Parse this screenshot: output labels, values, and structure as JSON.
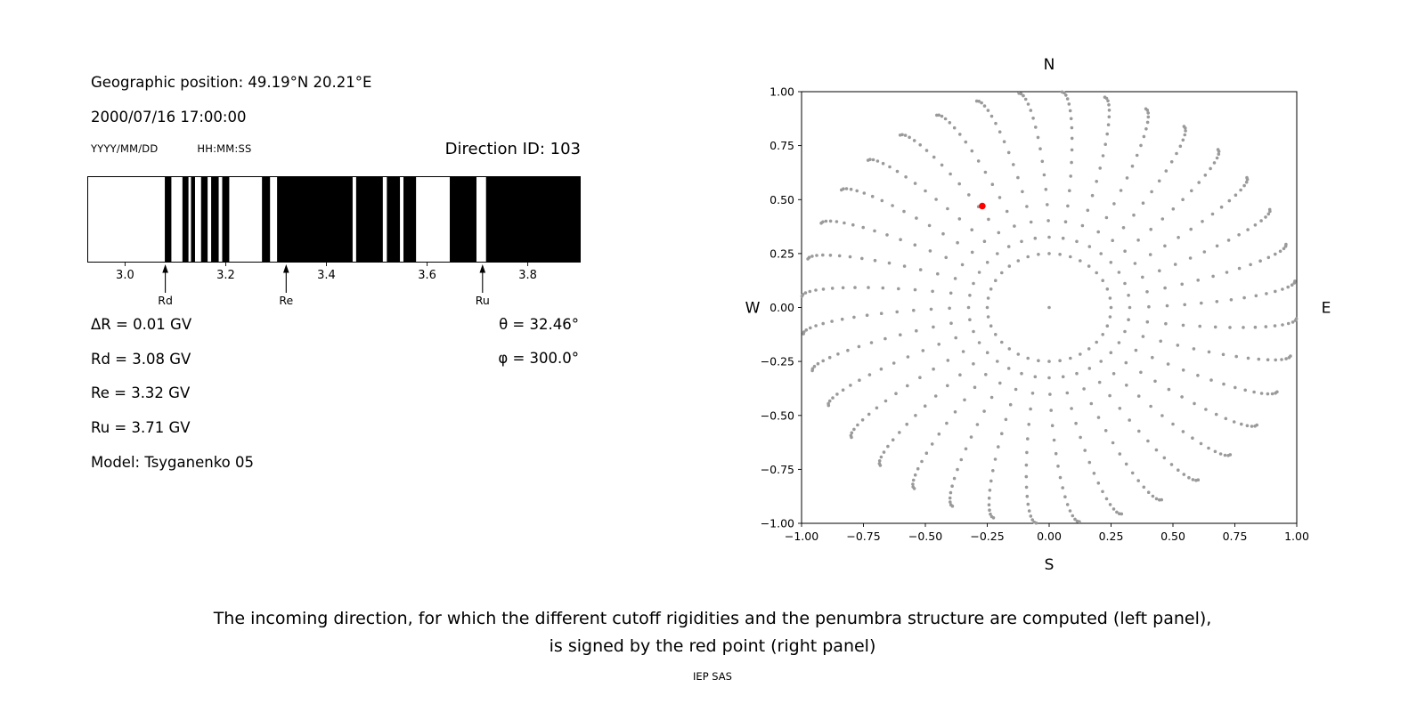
{
  "left_panel": {
    "geo_position": "Geographic position: 49.19°N 20.21°E",
    "datetime": "2000/07/16 17:00:00",
    "date_format_label": "YYYY/MM/DD",
    "time_format_label": "HH:MM:SS",
    "direction_id_label": "Direction ID: 103",
    "delta_r": "ΔR = 0.01 GV",
    "rd": "Rd = 3.08 GV",
    "re": "Re = 3.32 GV",
    "ru": "Ru = 3.71 GV",
    "model": "Model: Tsyganenko 05",
    "theta": "θ = 32.46°",
    "phi": "φ = 300.0°"
  },
  "caption": {
    "line1": "The incoming direction, for which the different cutoff rigidities and the penumbra structure are computed (left panel),",
    "line2": "is signed by the red point (right panel)",
    "credit": "IEP SAS"
  },
  "chart_data": [
    {
      "type": "bar",
      "name": "penumbra-structure",
      "xlim": [
        2.925,
        3.905
      ],
      "xticks": [
        3.0,
        3.2,
        3.4,
        3.6,
        3.8
      ],
      "xtick_labels": [
        "3.0",
        "3.2",
        "3.4",
        "3.6",
        "3.8"
      ],
      "bar_color": "#000000",
      "allowed_windows": [
        [
          3.079,
          3.092
        ],
        [
          3.114,
          3.126
        ],
        [
          3.131,
          3.139
        ],
        [
          3.151,
          3.164
        ],
        [
          3.171,
          3.186
        ],
        [
          3.193,
          3.207
        ],
        [
          3.272,
          3.288
        ],
        [
          3.302,
          3.452
        ],
        [
          3.459,
          3.512
        ],
        [
          3.52,
          3.546
        ],
        [
          3.553,
          3.578
        ],
        [
          3.645,
          3.698
        ],
        [
          3.717,
          3.905
        ]
      ],
      "markers": [
        {
          "label": "Rd",
          "x": 3.08
        },
        {
          "label": "Re",
          "x": 3.32
        },
        {
          "label": "Ru",
          "x": 3.71
        }
      ]
    },
    {
      "type": "scatter",
      "name": "incoming-direction-map",
      "xlim": [
        -1,
        1
      ],
      "ylim": [
        -1,
        1
      ],
      "xticks": [
        -1.0,
        -0.75,
        -0.5,
        -0.25,
        0.0,
        0.25,
        0.5,
        0.75,
        1.0
      ],
      "xtick_labels": [
        "−1.00",
        "−0.75",
        "−0.50",
        "−0.25",
        "0.00",
        "0.25",
        "0.50",
        "0.75",
        "1.00"
      ],
      "yticks": [
        1.0,
        0.75,
        0.5,
        0.25,
        0.0,
        -0.25,
        -0.5,
        -0.75,
        -1.0
      ],
      "ytick_labels": [
        "1.00",
        "0.75",
        "0.50",
        "0.25",
        "0.00",
        "−0.25",
        "−0.50",
        "−0.75",
        "−1.00"
      ],
      "compass": {
        "top": "N",
        "bottom": "S",
        "left": "W",
        "right": "E"
      },
      "dot_color": "#9a9a9a",
      "red_point": {
        "x": -0.27,
        "y": 0.47,
        "color": "#ff0000"
      },
      "pattern": {
        "n_spokes": 36,
        "zenith_min_deg": 19,
        "zenith_max_deg": 90,
        "dots_per_spoke": 16,
        "twist_deg": -7,
        "inner_ring_radius": 0.25,
        "inner_ring_dots": 36,
        "center_dot": true
      }
    }
  ]
}
